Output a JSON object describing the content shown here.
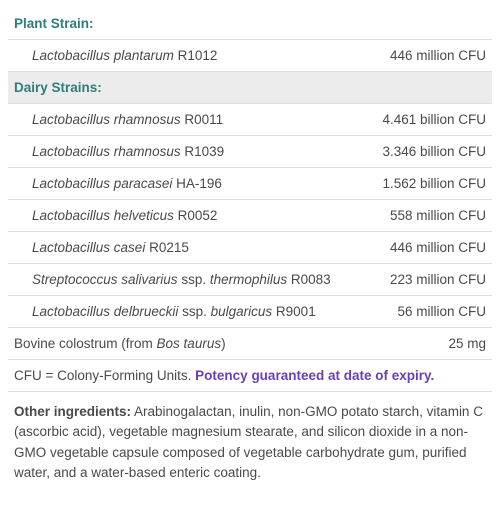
{
  "colors": {
    "heading": "#2F7E7A",
    "guarantee": "#6B3FB5",
    "text": "#4a4a4a",
    "border": "#dddddd",
    "header_bg": "#ececec",
    "white": "#ffffff"
  },
  "sections": [
    {
      "title": "Plant Strain:",
      "bg": false,
      "items": [
        {
          "species": "Lactobacillus plantarum",
          "strain": "R1012",
          "amount": "446 million CFU"
        }
      ]
    },
    {
      "title": "Dairy Strains:",
      "bg": true,
      "items": [
        {
          "species": "Lactobacillus rhamnosus",
          "strain": "R0011",
          "amount": "4.461 billion CFU"
        },
        {
          "species": "Lactobacillus rhamnosus",
          "strain": "R1039",
          "amount": "3.346 billion CFU"
        },
        {
          "species": "Lactobacillus paracasei",
          "strain": "HA-196",
          "amount": "1.562 billion CFU"
        },
        {
          "species": "Lactobacillus helveticus",
          "strain": "R0052",
          "amount": "558 million CFU"
        },
        {
          "species": "Lactobacillus casei",
          "strain": "R0215",
          "amount": "446 million CFU"
        },
        {
          "species": "Streptococcus salivarius",
          "ssp": "thermophilus",
          "strain": "R0083",
          "amount": "223 million CFU"
        },
        {
          "species": "Lactobacillus delbrueckii",
          "ssp": "bulgaricus",
          "strain": "R9001",
          "amount": "56 million CFU"
        }
      ]
    }
  ],
  "extra_row": {
    "pre": "Bovine colostrum (from ",
    "species": "Bos taurus",
    "post": ")",
    "amount": "25 mg"
  },
  "footnote": {
    "definition": "CFU = Colony-Forming Units. ",
    "guarantee": "Potency guaranteed at date of expiry."
  },
  "other": {
    "lead": "Other ingredients:",
    "body": " Arabinogalactan, inulin, non-GMO potato starch, vitamin C (ascorbic acid), vegetable magnesium stearate, and silicon dioxide in a non-GMO vegetable capsule composed of vegetable carbohydrate gum, purified water, and a water-based enteric coating."
  }
}
